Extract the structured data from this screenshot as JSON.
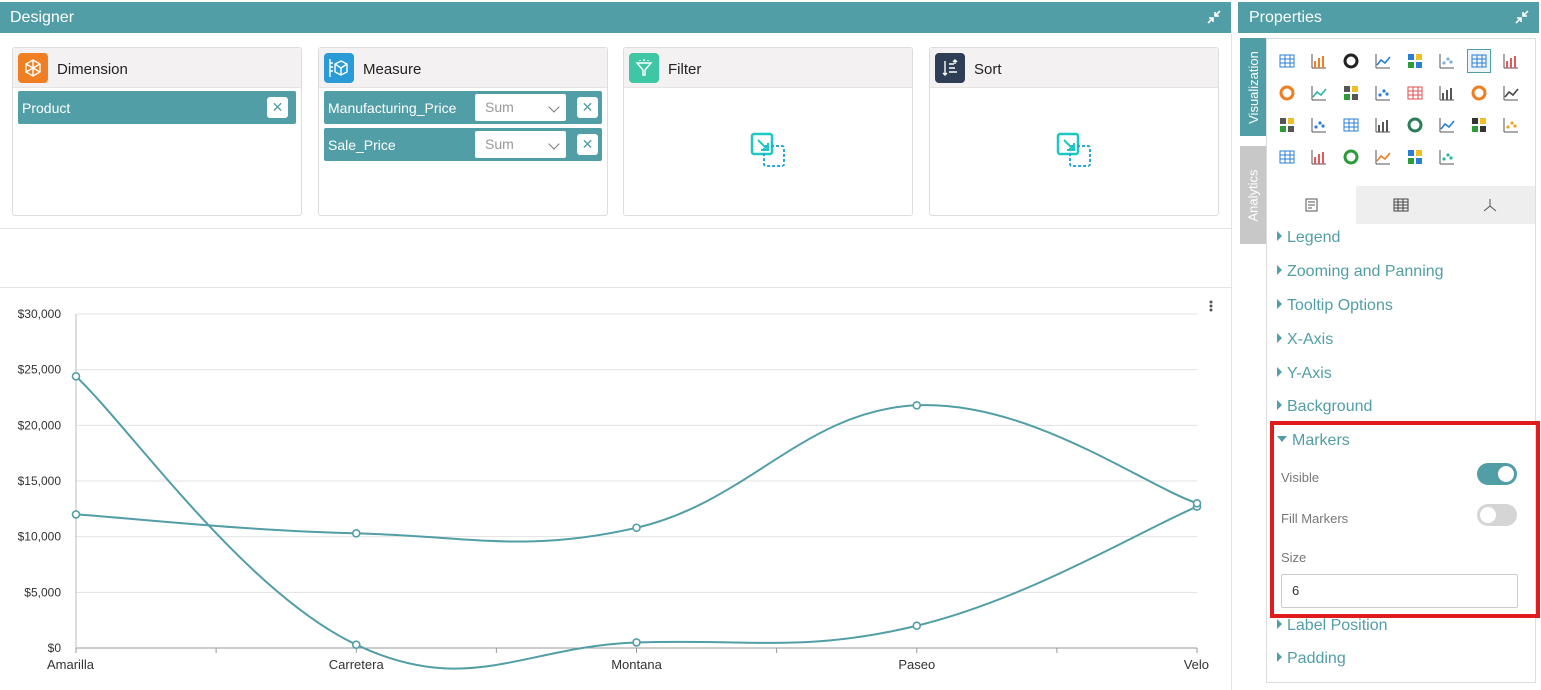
{
  "designer": {
    "title": "Designer",
    "dimension": {
      "title": "Dimension",
      "fields": [
        {
          "label": "Product"
        }
      ]
    },
    "measure": {
      "title": "Measure",
      "fields": [
        {
          "label": "Manufacturing_Price",
          "agg": "Sum"
        },
        {
          "label": "Sale_Price",
          "agg": "Sum"
        }
      ]
    },
    "filter": {
      "title": "Filter"
    },
    "sort": {
      "title": "Sort"
    }
  },
  "chart_data": {
    "type": "line",
    "categories": [
      "Amarilla",
      "Carretera",
      "Montana",
      "Paseo",
      "Velo"
    ],
    "series": [
      {
        "values": [
          24400,
          300,
          500,
          2000,
          12700
        ]
      },
      {
        "values": [
          12000,
          10300,
          10800,
          21800,
          13000
        ]
      }
    ],
    "ylim": [
      0,
      30000
    ],
    "yticks": [
      "$0",
      "$5,000",
      "$10,000",
      "$15,000",
      "$20,000",
      "$25,000",
      "$30,000"
    ],
    "grid": true,
    "line_color": "#529ea6"
  },
  "properties": {
    "title": "Properties",
    "tabs": {
      "visualization": "Visualization",
      "analytics": "Analytics"
    },
    "sections": [
      "Legend",
      "Zooming and Panning",
      "Tooltip Options",
      "X-Axis",
      "Y-Axis",
      "Background"
    ],
    "markers": {
      "title": "Markers",
      "visible_label": "Visible",
      "visible": true,
      "fill_label": "Fill Markers",
      "fill": false,
      "size_label": "Size",
      "size_value": "6"
    },
    "after_sections": [
      "Label Position",
      "Padding"
    ]
  },
  "colors": {
    "accent": "#529ea6",
    "highlight": "#e01b1b"
  }
}
